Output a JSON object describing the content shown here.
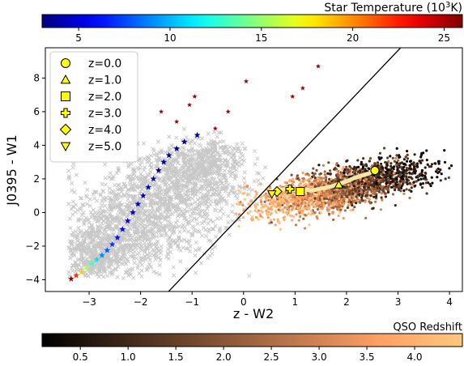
{
  "chart_data": {
    "type": "scatter",
    "title": "",
    "xlabel": "z - W2",
    "ylabel": "J0395 - W1",
    "xlim": [
      -3.85,
      4.25
    ],
    "ylim": [
      -4.7,
      9.8
    ],
    "x_ticks": [
      -3,
      -2,
      -1,
      0,
      1,
      2,
      3,
      4
    ],
    "y_ticks": [
      -4,
      -2,
      0,
      2,
      4,
      6,
      8
    ],
    "grid": false,
    "legend_placement": "top-left",
    "colorbars": [
      {
        "label": "Star Temperature (10³K)",
        "label_base": "Star Temperature (10",
        "label_sup": "3",
        "label_tail": "K)",
        "placement": "top",
        "range": [
          3,
          26
        ],
        "ticks": [
          5,
          10,
          15,
          20,
          25
        ],
        "colormap": "jet"
      },
      {
        "label": "QSO Redshift",
        "placement": "bottom",
        "range": [
          0.1,
          4.5
        ],
        "ticks": [
          0.5,
          1.0,
          1.5,
          2.0,
          2.5,
          3.0,
          3.5,
          4.0
        ],
        "tick_labels": [
          "0.5",
          "1.0",
          "1.5",
          "2.0",
          "2.5",
          "3.0",
          "3.5",
          "4.0"
        ],
        "colormap": "copper"
      }
    ],
    "divider_line": {
      "points": [
        [
          -1.55,
          -5.0
        ],
        [
          3.05,
          9.8
        ]
      ]
    },
    "brown_dwarf_population": {
      "description": "grey x markers",
      "region": {
        "x_range": [
          -3.4,
          0.5
        ],
        "y_range": [
          -3.9,
          5.3
        ]
      }
    },
    "qso_population": {
      "description": "dots colored by QSO Redshift",
      "region": {
        "x_range": [
          -0.2,
          4.2
        ],
        "y_range": [
          -1.5,
          4.2
        ]
      }
    },
    "stellar_track": [
      {
        "x": -3.35,
        "y": -3.95,
        "temp": 25.5
      },
      {
        "x": -3.25,
        "y": -3.75,
        "temp": 22.0
      },
      {
        "x": -3.15,
        "y": -3.55,
        "temp": 18.5
      },
      {
        "x": -3.05,
        "y": -3.3,
        "temp": 15.5
      },
      {
        "x": -2.95,
        "y": -3.05,
        "temp": 13.0
      },
      {
        "x": -2.85,
        "y": -2.8,
        "temp": 11.0
      },
      {
        "x": -2.75,
        "y": -2.55,
        "temp": 9.0
      },
      {
        "x": -2.65,
        "y": -2.25,
        "temp": 7.8
      },
      {
        "x": -2.55,
        "y": -1.9,
        "temp": 7.0
      },
      {
        "x": -2.45,
        "y": -1.5,
        "temp": 6.3
      },
      {
        "x": -2.35,
        "y": -1.0,
        "temp": 5.8
      },
      {
        "x": -2.25,
        "y": -0.5,
        "temp": 5.4
      },
      {
        "x": -2.15,
        "y": 0.0,
        "temp": 5.0
      },
      {
        "x": -2.05,
        "y": 0.5,
        "temp": 4.7
      },
      {
        "x": -1.95,
        "y": 1.0,
        "temp": 4.4
      },
      {
        "x": -1.85,
        "y": 1.5,
        "temp": 4.2
      },
      {
        "x": -1.75,
        "y": 2.0,
        "temp": 4.0
      },
      {
        "x": -1.65,
        "y": 2.5,
        "temp": 3.8
      },
      {
        "x": -1.55,
        "y": 3.0,
        "temp": 3.6
      },
      {
        "x": -1.45,
        "y": 3.4,
        "temp": 3.4
      },
      {
        "x": -1.3,
        "y": 3.8,
        "temp": 3.2
      },
      {
        "x": -1.15,
        "y": 4.2,
        "temp": 3.1
      },
      {
        "x": -0.9,
        "y": 4.6,
        "temp": 3.0
      }
    ],
    "red_stars": [
      {
        "x": -1.6,
        "y": 6.0
      },
      {
        "x": -1.3,
        "y": 5.4
      },
      {
        "x": -1.05,
        "y": 6.4
      },
      {
        "x": -0.95,
        "y": 6.9
      },
      {
        "x": -0.55,
        "y": 5.0
      },
      {
        "x": -0.3,
        "y": 6.0
      },
      {
        "x": 0.05,
        "y": 7.8
      },
      {
        "x": 0.95,
        "y": 6.9
      },
      {
        "x": 1.15,
        "y": 7.4
      },
      {
        "x": 1.45,
        "y": 8.7
      }
    ],
    "qso_track": {
      "x": [
        2.55,
        2.45,
        2.3,
        2.15,
        2.0,
        1.85,
        1.7,
        1.55,
        1.4,
        1.3,
        1.25,
        1.15,
        1.05,
        0.95,
        0.85,
        0.75,
        0.65,
        0.55
      ],
      "y": [
        2.55,
        2.35,
        2.2,
        2.05,
        1.85,
        1.7,
        1.55,
        1.45,
        1.35,
        1.3,
        1.35,
        1.25,
        1.3,
        1.35,
        1.45,
        1.35,
        1.2,
        1.1
      ]
    },
    "qso_markers": [
      {
        "label": "z=0.0",
        "marker": "circle",
        "x": 2.55,
        "y": 2.5
      },
      {
        "label": "z=1.0",
        "marker": "triangle-up",
        "x": 1.85,
        "y": 1.65
      },
      {
        "label": "z=2.0",
        "marker": "square",
        "x": 1.1,
        "y": 1.25
      },
      {
        "label": "z=3.0",
        "marker": "plus",
        "x": 0.9,
        "y": 1.4
      },
      {
        "label": "z=4.0",
        "marker": "diamond",
        "x": 0.65,
        "y": 1.25
      },
      {
        "label": "z=5.0",
        "marker": "triangle-down",
        "x": 0.55,
        "y": 1.1
      }
    ],
    "legend": [
      {
        "label": "z=0.0",
        "marker": "circle"
      },
      {
        "label": "z=1.0",
        "marker": "triangle-up"
      },
      {
        "label": "z=2.0",
        "marker": "square"
      },
      {
        "label": "z=3.0",
        "marker": "plus"
      },
      {
        "label": "z=4.0",
        "marker": "diamond"
      },
      {
        "label": "z=5.0",
        "marker": "triangle-down"
      }
    ],
    "colors": {
      "brown_dwarf": "#c8c8c8",
      "qso_track": "#f3e6a6",
      "marker_fill": "#ffff00",
      "divider": "#000000"
    }
  }
}
